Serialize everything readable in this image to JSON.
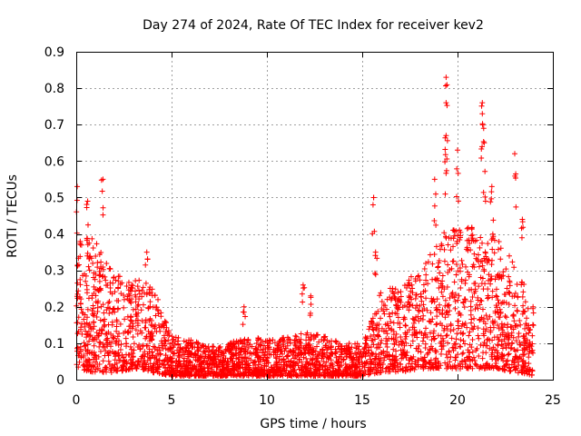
{
  "chart_data": {
    "type": "scatter",
    "title": "Day 274 of 2024, Rate Of TEC Index for receiver kev2",
    "xlabel": "GPS time / hours",
    "ylabel": "ROTI / TECUs",
    "xlim": [
      0,
      25
    ],
    "ylim": [
      0,
      0.9
    ],
    "xticks": [
      0,
      5,
      10,
      15,
      20,
      25
    ],
    "xtick_labels": [
      "0",
      "5",
      "10",
      "15",
      "20",
      "25"
    ],
    "yticks": [
      0,
      0.1,
      0.2,
      0.3,
      0.4,
      0.5,
      0.6,
      0.7,
      0.8,
      0.9
    ],
    "ytick_labels": [
      "0",
      "0.1",
      "0.2",
      "0.3",
      "0.4",
      "0.5",
      "0.6",
      "0.7",
      "0.8",
      "0.9"
    ],
    "grid": true,
    "marker": "+",
    "color": "#ff0000",
    "envelope": {
      "description": "approximate upper/lower bounds of the dense point cloud (hour, ROTI)",
      "hours": [
        0,
        1,
        2,
        3,
        4,
        5,
        6,
        7,
        8,
        9,
        10,
        11,
        12,
        13,
        14,
        15,
        16,
        17,
        18,
        19,
        20,
        21,
        22,
        23,
        24
      ],
      "upper": [
        0.42,
        0.38,
        0.3,
        0.28,
        0.26,
        0.12,
        0.11,
        0.09,
        0.1,
        0.12,
        0.11,
        0.12,
        0.13,
        0.12,
        0.1,
        0.1,
        0.25,
        0.26,
        0.3,
        0.4,
        0.42,
        0.42,
        0.4,
        0.32,
        0.2
      ],
      "lower": [
        0.03,
        0.02,
        0.02,
        0.03,
        0.02,
        0.01,
        0.01,
        0.01,
        0.01,
        0.01,
        0.01,
        0.01,
        0.01,
        0.01,
        0.01,
        0.01,
        0.02,
        0.02,
        0.03,
        0.03,
        0.03,
        0.03,
        0.03,
        0.02,
        0.01
      ]
    },
    "peaks": [
      {
        "x": 0.05,
        "y": 0.53
      },
      {
        "x": 0.6,
        "y": 0.49
      },
      {
        "x": 1.4,
        "y": 0.55
      },
      {
        "x": 3.7,
        "y": 0.35
      },
      {
        "x": 8.8,
        "y": 0.2
      },
      {
        "x": 11.9,
        "y": 0.26
      },
      {
        "x": 12.3,
        "y": 0.23
      },
      {
        "x": 15.6,
        "y": 0.5
      },
      {
        "x": 15.7,
        "y": 0.35
      },
      {
        "x": 19.4,
        "y": 0.83
      },
      {
        "x": 19.4,
        "y": 0.76
      },
      {
        "x": 19.4,
        "y": 0.67
      },
      {
        "x": 20.0,
        "y": 0.63
      },
      {
        "x": 21.3,
        "y": 0.76
      },
      {
        "x": 21.3,
        "y": 0.73
      },
      {
        "x": 21.4,
        "y": 0.65
      },
      {
        "x": 23.0,
        "y": 0.62
      },
      {
        "x": 21.8,
        "y": 0.53
      },
      {
        "x": 18.8,
        "y": 0.55
      },
      {
        "x": 23.4,
        "y": 0.44
      },
      {
        "x": 16.9,
        "y": 0.22
      },
      {
        "x": 17.6,
        "y": 0.26
      }
    ]
  }
}
